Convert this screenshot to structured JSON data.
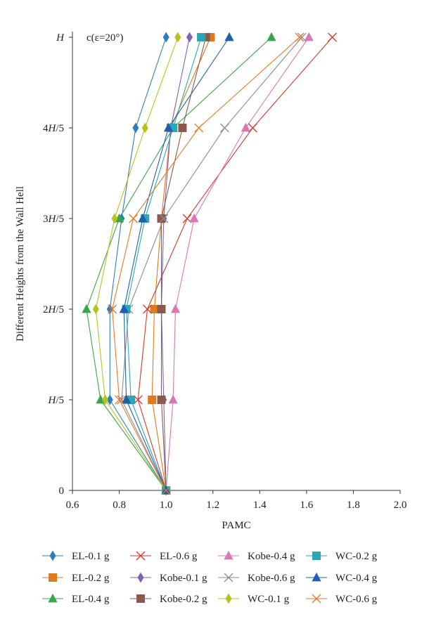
{
  "chart_data": {
    "type": "line",
    "annotation": "c(ε=20°)",
    "xlabel": "PAMC",
    "ylabel": "Different Heights from the Wall Hell",
    "xlim": [
      0.6,
      2.0
    ],
    "xticks": [
      "0.6",
      "0.8",
      "1.0",
      "1.2",
      "1.4",
      "1.6",
      "1.8",
      "2.0"
    ],
    "xtick_values": [
      0.6,
      0.8,
      1.0,
      1.2,
      1.4,
      1.6,
      1.8,
      2.0
    ],
    "yticks": [
      "0",
      "H/5",
      "2H/5",
      "3H/5",
      "4H/5",
      "H"
    ],
    "grid": false,
    "legend_position": "bottom",
    "series": [
      {
        "name": "EL-0.1 g",
        "color": "#2f7ebc",
        "marker": "diamond",
        "values": [
          1.0,
          0.76,
          0.76,
          0.81,
          0.87,
          1.0
        ]
      },
      {
        "name": "EL-0.2 g",
        "color": "#e07a1f",
        "marker": "square",
        "values": [
          1.0,
          0.94,
          0.95,
          0.98,
          1.02,
          1.19
        ]
      },
      {
        "name": "EL-0.4 g",
        "color": "#3aa64a",
        "marker": "triangle",
        "values": [
          1.0,
          0.72,
          0.66,
          0.8,
          1.03,
          1.45
        ]
      },
      {
        "name": "EL-0.6 g",
        "color": "#d23a2a",
        "marker": "x",
        "values": [
          1.0,
          0.88,
          0.92,
          1.09,
          1.37,
          1.71
        ]
      },
      {
        "name": "Kobe-0.1 g",
        "color": "#7f63b8",
        "marker": "diamond",
        "values": [
          1.0,
          0.99,
          0.98,
          0.99,
          1.02,
          1.1
        ]
      },
      {
        "name": "Kobe-0.2 g",
        "color": "#8b5a4c",
        "marker": "square",
        "values": [
          1.0,
          0.98,
          0.98,
          0.98,
          1.07,
          1.17
        ]
      },
      {
        "name": "Kobe-0.4 g",
        "color": "#d978b4",
        "marker": "triangle",
        "values": [
          1.0,
          1.03,
          1.04,
          1.12,
          1.34,
          1.61
        ]
      },
      {
        "name": "Kobe-0.6 g",
        "color": "#8c8c8c",
        "marker": "x",
        "values": [
          1.0,
          0.81,
          0.84,
          0.99,
          1.25,
          1.58
        ]
      },
      {
        "name": "WC-0.1 g",
        "color": "#b8c21e",
        "marker": "diamond",
        "values": [
          1.0,
          0.74,
          0.7,
          0.78,
          0.91,
          1.05
        ]
      },
      {
        "name": "WC-0.2 g",
        "color": "#2aa7b5",
        "marker": "square",
        "values": [
          1.0,
          0.85,
          0.83,
          0.91,
          1.03,
          1.15
        ]
      },
      {
        "name": "WC-0.4 g",
        "color": "#1f5fad",
        "marker": "triangle",
        "values": [
          1.0,
          0.83,
          0.82,
          0.9,
          1.01,
          1.27
        ]
      },
      {
        "name": "WC-0.6 g",
        "color": "#e8782a",
        "marker": "x",
        "values": [
          1.0,
          0.8,
          0.77,
          0.86,
          1.14,
          1.57
        ]
      }
    ]
  }
}
